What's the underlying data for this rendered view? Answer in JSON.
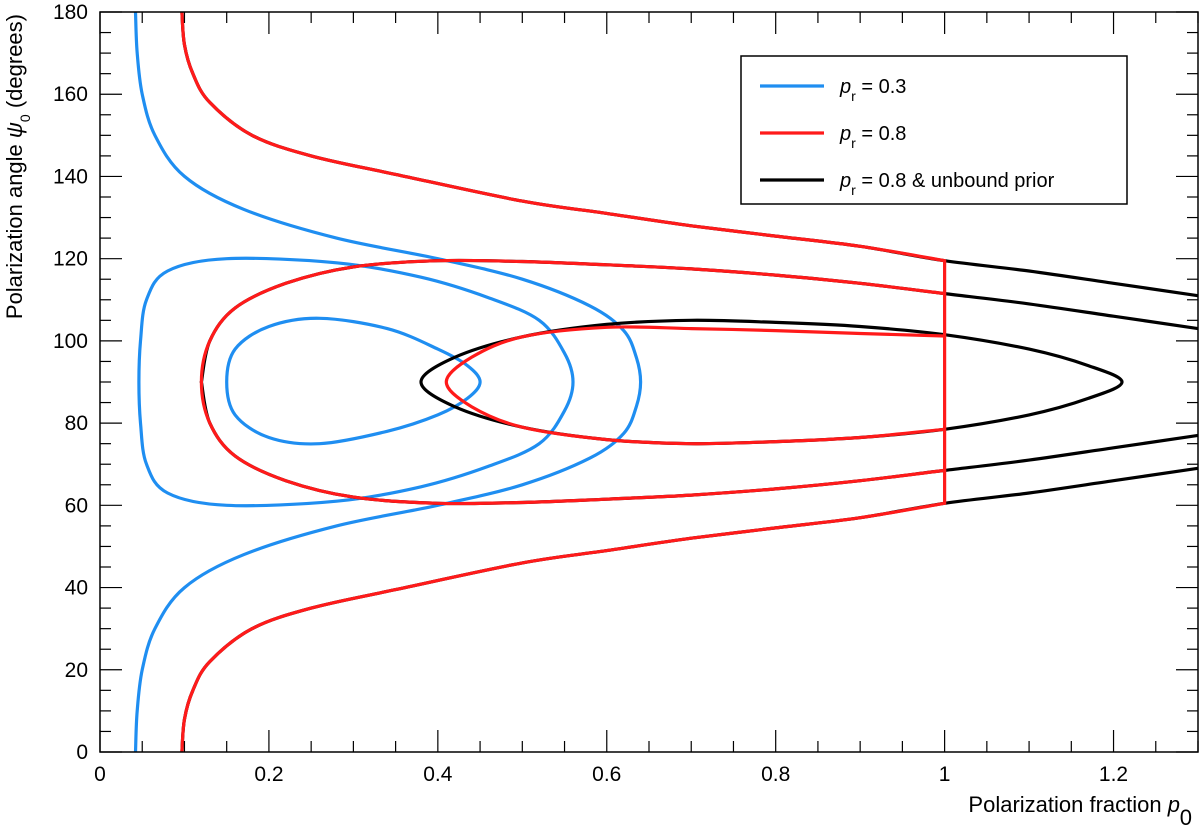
{
  "chart_data": {
    "type": "line",
    "title": "",
    "xlabel": {
      "text": "Polarization fraction ",
      "symbol": "p",
      "subscript": "0"
    },
    "ylabel": {
      "text": "Polarization angle ",
      "symbol": "ψ",
      "subscript": "0",
      "suffix": "  (degrees)"
    },
    "xlim": [
      0,
      1.3
    ],
    "ylim": [
      0,
      180
    ],
    "x_ticks": [
      0,
      0.2,
      0.4,
      0.6,
      0.8,
      1,
      1.2
    ],
    "x_tick_labels": [
      "0",
      "0.2",
      "0.4",
      "0.6",
      "0.8",
      "1",
      "1.2"
    ],
    "x_minor_step": 0.05,
    "y_ticks": [
      0,
      20,
      40,
      60,
      80,
      100,
      120,
      140,
      160,
      180
    ],
    "y_tick_labels": [
      "0",
      "20",
      "40",
      "60",
      "80",
      "100",
      "120",
      "140",
      "160",
      "180"
    ],
    "y_minor_step": 5,
    "grid": false,
    "legend_position": "top-right",
    "legend": [
      {
        "symbol": "p",
        "subscript": "r",
        "text": " = 0.3",
        "color": "#1f8ef1"
      },
      {
        "symbol": "p",
        "subscript": "r",
        "text": " = 0.8",
        "color": "#ff1a1a"
      },
      {
        "symbol": "p",
        "subscript": "r",
        "text": " = 0.8 & unbound prior",
        "color": "#000000"
      }
    ],
    "series": [
      {
        "color": "#1f8ef1",
        "kind": "closed",
        "contour": "inner",
        "points": [
          [
            0.26,
            75
          ],
          [
            0.34,
            78
          ],
          [
            0.4,
            82
          ],
          [
            0.435,
            86
          ],
          [
            0.45,
            90
          ],
          [
            0.435,
            94
          ],
          [
            0.4,
            98
          ],
          [
            0.34,
            103
          ],
          [
            0.26,
            105.5
          ],
          [
            0.2,
            103.5
          ],
          [
            0.16,
            98
          ],
          [
            0.15,
            90
          ],
          [
            0.16,
            82
          ],
          [
            0.2,
            76.5
          ]
        ]
      },
      {
        "color": "#1f8ef1",
        "kind": "closed",
        "contour": "middle",
        "points": [
          [
            0.15,
            60
          ],
          [
            0.28,
            61
          ],
          [
            0.38,
            64.5
          ],
          [
            0.46,
            69.5
          ],
          [
            0.52,
            75
          ],
          [
            0.55,
            83
          ],
          [
            0.56,
            90
          ],
          [
            0.55,
            97
          ],
          [
            0.52,
            105
          ],
          [
            0.46,
            110.5
          ],
          [
            0.38,
            115.5
          ],
          [
            0.28,
            119
          ],
          [
            0.15,
            120
          ],
          [
            0.08,
            117
          ],
          [
            0.055,
            110
          ],
          [
            0.048,
            100
          ],
          [
            0.046,
            90
          ],
          [
            0.048,
            80
          ],
          [
            0.055,
            70
          ],
          [
            0.08,
            63
          ]
        ]
      },
      {
        "color": "#1f8ef1",
        "kind": "open",
        "contour": "outer",
        "points": [
          [
            0.042,
            0
          ],
          [
            0.044,
            10
          ],
          [
            0.05,
            20
          ],
          [
            0.065,
            30
          ],
          [
            0.1,
            40
          ],
          [
            0.17,
            48
          ],
          [
            0.28,
            55
          ],
          [
            0.4,
            60
          ],
          [
            0.5,
            65
          ],
          [
            0.58,
            71.5
          ],
          [
            0.62,
            77.5
          ],
          [
            0.635,
            84
          ],
          [
            0.64,
            90
          ],
          [
            0.635,
            96
          ],
          [
            0.62,
            102.5
          ],
          [
            0.58,
            108.5
          ],
          [
            0.5,
            115
          ],
          [
            0.4,
            120
          ],
          [
            0.28,
            125
          ],
          [
            0.17,
            132
          ],
          [
            0.1,
            140
          ],
          [
            0.065,
            150
          ],
          [
            0.05,
            160
          ],
          [
            0.044,
            170
          ],
          [
            0.042,
            180
          ]
        ]
      },
      {
        "color": "#000000",
        "kind": "closed",
        "contour": "inner",
        "points": [
          [
            0.38,
            90
          ],
          [
            0.42,
            84
          ],
          [
            0.5,
            79
          ],
          [
            0.6,
            76
          ],
          [
            0.7,
            75
          ],
          [
            0.8,
            75.5
          ],
          [
            0.9,
            76.5
          ],
          [
            1.0,
            78.5
          ],
          [
            1.1,
            82
          ],
          [
            1.17,
            86
          ],
          [
            1.21,
            90
          ],
          [
            1.17,
            94
          ],
          [
            1.1,
            98
          ],
          [
            1.0,
            101.5
          ],
          [
            0.9,
            103.5
          ],
          [
            0.8,
            104.5
          ],
          [
            0.7,
            105
          ],
          [
            0.6,
            104
          ],
          [
            0.5,
            101
          ],
          [
            0.42,
            96
          ]
        ]
      },
      {
        "color": "#000000",
        "kind": "open",
        "contour": "middle-lower",
        "points": [
          [
            0.12,
            90
          ],
          [
            0.13,
            80
          ],
          [
            0.16,
            72
          ],
          [
            0.22,
            66
          ],
          [
            0.3,
            62
          ],
          [
            0.4,
            60.5
          ],
          [
            0.5,
            60.7
          ],
          [
            0.6,
            61.5
          ],
          [
            0.7,
            62.5
          ],
          [
            0.8,
            64
          ],
          [
            0.9,
            66
          ],
          [
            1.0,
            68.5
          ],
          [
            1.1,
            71
          ],
          [
            1.2,
            74
          ],
          [
            1.3,
            77
          ]
        ]
      },
      {
        "color": "#000000",
        "kind": "open",
        "contour": "middle-upper",
        "points": [
          [
            0.12,
            90
          ],
          [
            0.13,
            100
          ],
          [
            0.16,
            108
          ],
          [
            0.22,
            114
          ],
          [
            0.3,
            118
          ],
          [
            0.4,
            119.5
          ],
          [
            0.5,
            119.3
          ],
          [
            0.6,
            118.5
          ],
          [
            0.7,
            117.5
          ],
          [
            0.8,
            116
          ],
          [
            0.9,
            114
          ],
          [
            1.0,
            111.5
          ],
          [
            1.1,
            109
          ],
          [
            1.2,
            106
          ],
          [
            1.3,
            103
          ]
        ]
      },
      {
        "color": "#000000",
        "kind": "open",
        "contour": "outer-upper",
        "points": [
          [
            0.097,
            180
          ],
          [
            0.1,
            172
          ],
          [
            0.11,
            165
          ],
          [
            0.13,
            158
          ],
          [
            0.18,
            150
          ],
          [
            0.25,
            145
          ],
          [
            0.35,
            140.5
          ],
          [
            0.5,
            134
          ],
          [
            0.6,
            131
          ],
          [
            0.7,
            128
          ],
          [
            0.8,
            125.5
          ],
          [
            0.9,
            123
          ],
          [
            1.0,
            119.5
          ],
          [
            1.1,
            117
          ],
          [
            1.2,
            114
          ],
          [
            1.3,
            111
          ]
        ]
      },
      {
        "color": "#000000",
        "kind": "open",
        "contour": "outer-lower",
        "points": [
          [
            0.097,
            0
          ],
          [
            0.1,
            8
          ],
          [
            0.11,
            15
          ],
          [
            0.13,
            22
          ],
          [
            0.18,
            30
          ],
          [
            0.25,
            35
          ],
          [
            0.35,
            39.5
          ],
          [
            0.5,
            46
          ],
          [
            0.6,
            49
          ],
          [
            0.7,
            52
          ],
          [
            0.8,
            54.5
          ],
          [
            0.9,
            57
          ],
          [
            1.0,
            60.5
          ],
          [
            1.1,
            63
          ],
          [
            1.2,
            66
          ],
          [
            1.3,
            69
          ]
        ]
      },
      {
        "color": "#ff1a1a",
        "kind": "open",
        "contour": "inner-truncated",
        "points": [
          [
            1.0,
            78.5
          ],
          [
            0.9,
            76.5
          ],
          [
            0.8,
            75.5
          ],
          [
            0.7,
            75
          ],
          [
            0.6,
            76
          ],
          [
            0.5,
            79
          ],
          [
            0.44,
            84
          ],
          [
            0.41,
            90
          ],
          [
            0.44,
            96
          ],
          [
            0.5,
            101
          ],
          [
            0.6,
            103.3
          ],
          [
            0.7,
            103
          ],
          [
            0.8,
            102.5
          ],
          [
            0.9,
            101.8
          ],
          [
            1.0,
            101.2
          ]
        ]
      },
      {
        "color": "#ff1a1a",
        "kind": "open",
        "contour": "middle-truncated",
        "points": [
          [
            1.0,
            68.5
          ],
          [
            0.9,
            66
          ],
          [
            0.8,
            64
          ],
          [
            0.7,
            62.5
          ],
          [
            0.6,
            61.5
          ],
          [
            0.5,
            60.7
          ],
          [
            0.4,
            60.5
          ],
          [
            0.3,
            62
          ],
          [
            0.22,
            66
          ],
          [
            0.16,
            72
          ],
          [
            0.13,
            80
          ],
          [
            0.12,
            90
          ],
          [
            0.13,
            100
          ],
          [
            0.16,
            108
          ],
          [
            0.22,
            114
          ],
          [
            0.3,
            118
          ],
          [
            0.4,
            119.5
          ],
          [
            0.5,
            119.3
          ],
          [
            0.6,
            118.5
          ],
          [
            0.7,
            117.5
          ],
          [
            0.8,
            116
          ],
          [
            0.9,
            114
          ],
          [
            1.0,
            111.5
          ]
        ]
      },
      {
        "color": "#ff1a1a",
        "kind": "open",
        "contour": "outer-upper-truncated",
        "points": [
          [
            0.097,
            180
          ],
          [
            0.1,
            172
          ],
          [
            0.11,
            165
          ],
          [
            0.13,
            158
          ],
          [
            0.18,
            150
          ],
          [
            0.25,
            145
          ],
          [
            0.35,
            140.5
          ],
          [
            0.5,
            134
          ],
          [
            0.6,
            131
          ],
          [
            0.7,
            128
          ],
          [
            0.8,
            125.5
          ],
          [
            0.9,
            123
          ],
          [
            1.0,
            119.5
          ]
        ]
      },
      {
        "color": "#ff1a1a",
        "kind": "open",
        "contour": "outer-lower-truncated",
        "points": [
          [
            0.097,
            0
          ],
          [
            0.1,
            8
          ],
          [
            0.11,
            15
          ],
          [
            0.13,
            22
          ],
          [
            0.18,
            30
          ],
          [
            0.25,
            35
          ],
          [
            0.35,
            39.5
          ],
          [
            0.5,
            46
          ],
          [
            0.6,
            49
          ],
          [
            0.7,
            52
          ],
          [
            0.8,
            54.5
          ],
          [
            0.9,
            57
          ],
          [
            1.0,
            60.5
          ]
        ]
      },
      {
        "color": "#ff1a1a",
        "kind": "open",
        "contour": "prior-boundary",
        "points": [
          [
            1.0,
            60.5
          ],
          [
            1.0,
            119.5
          ]
        ]
      }
    ]
  }
}
